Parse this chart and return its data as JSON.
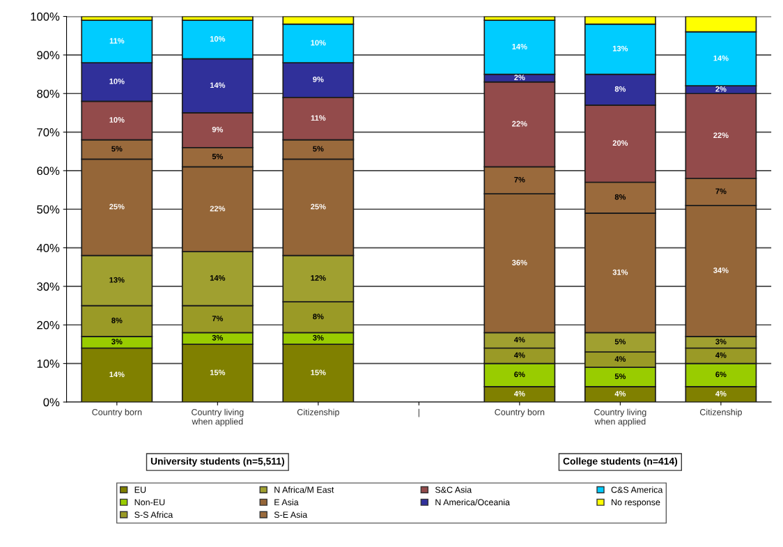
{
  "chart_data": {
    "type": "bar",
    "stacked": true,
    "categories": [
      "Country born",
      "Country living\nwhen applied",
      "Citizenship",
      "|",
      "Country born",
      "Country living\nwhen applied",
      "Citizenship"
    ],
    "series": [
      {
        "name": "EU",
        "color": "#808000",
        "values": [
          14,
          15,
          15,
          null,
          4,
          4,
          4
        ],
        "value_labels": [
          "14%",
          "15%",
          "15%",
          null,
          "4%",
          "4%",
          "4%"
        ]
      },
      {
        "name": "Non-EU",
        "color": "#99cc00",
        "values": [
          3,
          3,
          3,
          null,
          6,
          5,
          6
        ],
        "value_labels": [
          "3%",
          "3%",
          "3%",
          null,
          "6%",
          "5%",
          "6%"
        ]
      },
      {
        "name": "S-S Africa",
        "color": "#9a9a26",
        "values": [
          8,
          7,
          8,
          null,
          4,
          4,
          4
        ],
        "value_labels": [
          "8%",
          "7%",
          "8%",
          null,
          "4%",
          "4%",
          "4%"
        ]
      },
      {
        "name": "N Africa/M East",
        "color": "#a0a030",
        "values": [
          13,
          14,
          12,
          null,
          4,
          5,
          3
        ],
        "value_labels": [
          "13%",
          "14%",
          "12%",
          null,
          "4%",
          "5%",
          "3%"
        ]
      },
      {
        "name": "E Asia",
        "color": "#956638",
        "values": [
          25,
          22,
          25,
          null,
          36,
          31,
          34
        ],
        "value_labels": [
          "25%",
          "22%",
          "25%",
          null,
          "36%",
          "31%",
          "34%"
        ]
      },
      {
        "name": "S-E Asia",
        "color": "#9a6a3c",
        "values": [
          5,
          5,
          5,
          null,
          7,
          8,
          7
        ],
        "value_labels": [
          "5%",
          "5%",
          "5%",
          null,
          "7%",
          "8%",
          "7%"
        ]
      },
      {
        "name": "S&C Asia",
        "color": "#934b4b",
        "values": [
          10,
          9,
          11,
          null,
          22,
          20,
          22
        ],
        "value_labels": [
          "10%",
          "9%",
          "11%",
          null,
          "22%",
          "20%",
          "22%"
        ]
      },
      {
        "name": "N America/Oceania",
        "color": "#30309a",
        "values": [
          10,
          14,
          9,
          null,
          2,
          8,
          2
        ],
        "value_labels": [
          "10%",
          "14%",
          "9%",
          null,
          "2%",
          "8%",
          "2%"
        ]
      },
      {
        "name": "C&S America",
        "color": "#00ccff",
        "values": [
          11,
          10,
          10,
          null,
          14,
          13,
          14
        ],
        "value_labels": [
          "11%",
          "10%",
          "10%",
          null,
          "14%",
          "13%",
          "14%"
        ]
      },
      {
        "name": "No response",
        "color": "#ffff00",
        "values": [
          1,
          1,
          2,
          null,
          1,
          2,
          4
        ],
        "value_labels": [
          null,
          null,
          null,
          null,
          null,
          null,
          null
        ]
      }
    ],
    "ylim": [
      0,
      100
    ],
    "yticks": [
      {
        "value": 0,
        "label": "0%"
      },
      {
        "value": 10,
        "label": "10%"
      },
      {
        "value": 20,
        "label": "20%"
      },
      {
        "value": 30,
        "label": "30%"
      },
      {
        "value": 40,
        "label": "40%"
      },
      {
        "value": 50,
        "label": "50%"
      },
      {
        "value": 60,
        "label": "60%"
      },
      {
        "value": 70,
        "label": "70%"
      },
      {
        "value": 80,
        "label": "80%"
      },
      {
        "value": 90,
        "label": "90%"
      },
      {
        "value": 100,
        "label": "100%"
      }
    ],
    "grid": "y",
    "legend": "bottom",
    "annotations": [
      "University students (n=5,511)",
      "College students (n=414)"
    ]
  }
}
